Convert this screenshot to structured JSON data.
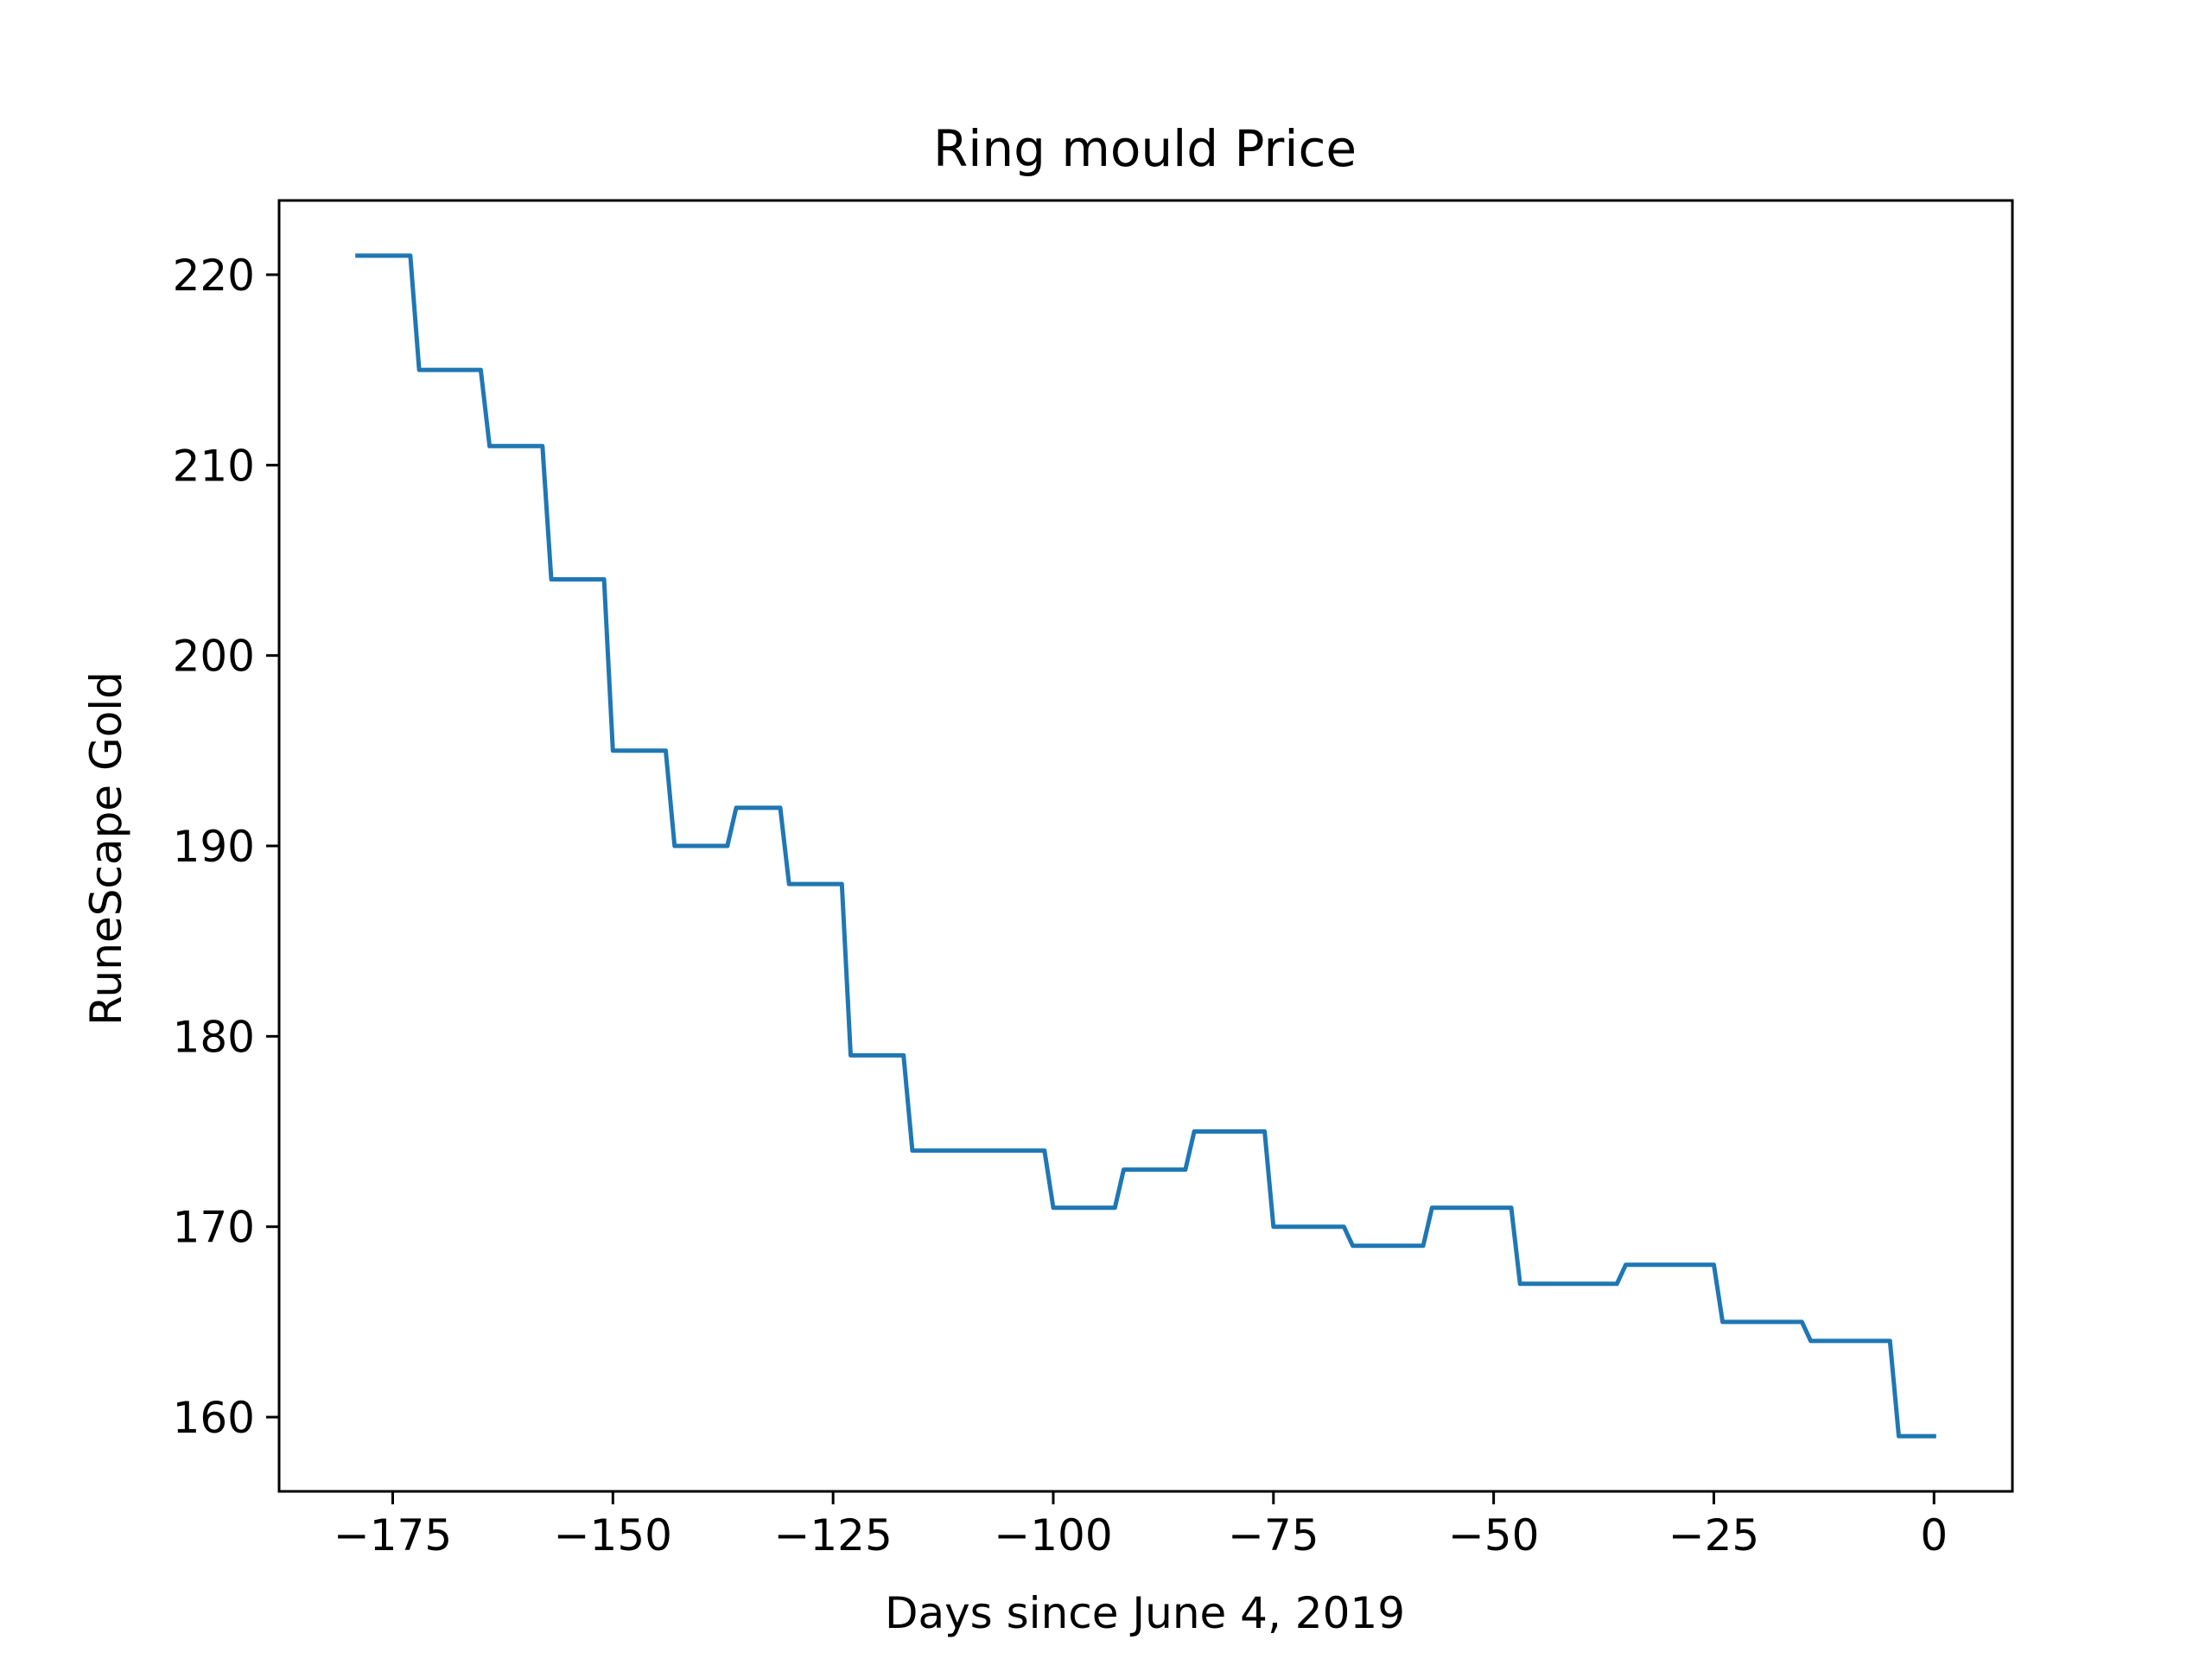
{
  "chart_data": {
    "type": "line",
    "title": "Ring mould Price",
    "xlabel": "Days since June 4, 2019",
    "ylabel": "RuneScape Gold",
    "xlim": [
      -187.9,
      8.9
    ],
    "ylim": [
      156.1,
      223.9
    ],
    "xticks": [
      -175,
      -150,
      -125,
      -100,
      -75,
      -50,
      -25,
      0
    ],
    "xtick_labels": [
      "−175",
      "−150",
      "−125",
      "−100",
      "−75",
      "−50",
      "−25",
      "0"
    ],
    "yticks": [
      160,
      170,
      180,
      190,
      200,
      210,
      220
    ],
    "ytick_labels": [
      "160",
      "170",
      "180",
      "190",
      "200",
      "210",
      "220"
    ],
    "grid": false,
    "series": [
      {
        "name": "Ring mould",
        "color": "#1f77b4",
        "x": [
          -179,
          -173,
          -172,
          -165,
          -164,
          -158,
          -157,
          -151,
          -150,
          -144,
          -143,
          -137,
          -136,
          -131,
          -130,
          -124,
          -123,
          -117,
          -116,
          -101,
          -100,
          -93,
          -92,
          -85,
          -84,
          -76,
          -75,
          -67,
          -66,
          -58,
          -57,
          -48,
          -47,
          -36,
          -35,
          -25,
          -24,
          -15,
          -14,
          -5,
          -4,
          0
        ],
        "y": [
          221,
          221,
          215,
          215,
          211,
          211,
          204,
          204,
          195,
          195,
          190,
          190,
          192,
          192,
          188,
          188,
          179,
          179,
          174,
          174,
          171,
          171,
          173,
          173,
          175,
          175,
          170,
          170,
          169,
          169,
          171,
          171,
          167,
          167,
          168,
          168,
          165,
          165,
          164,
          164,
          159,
          159
        ]
      }
    ]
  }
}
